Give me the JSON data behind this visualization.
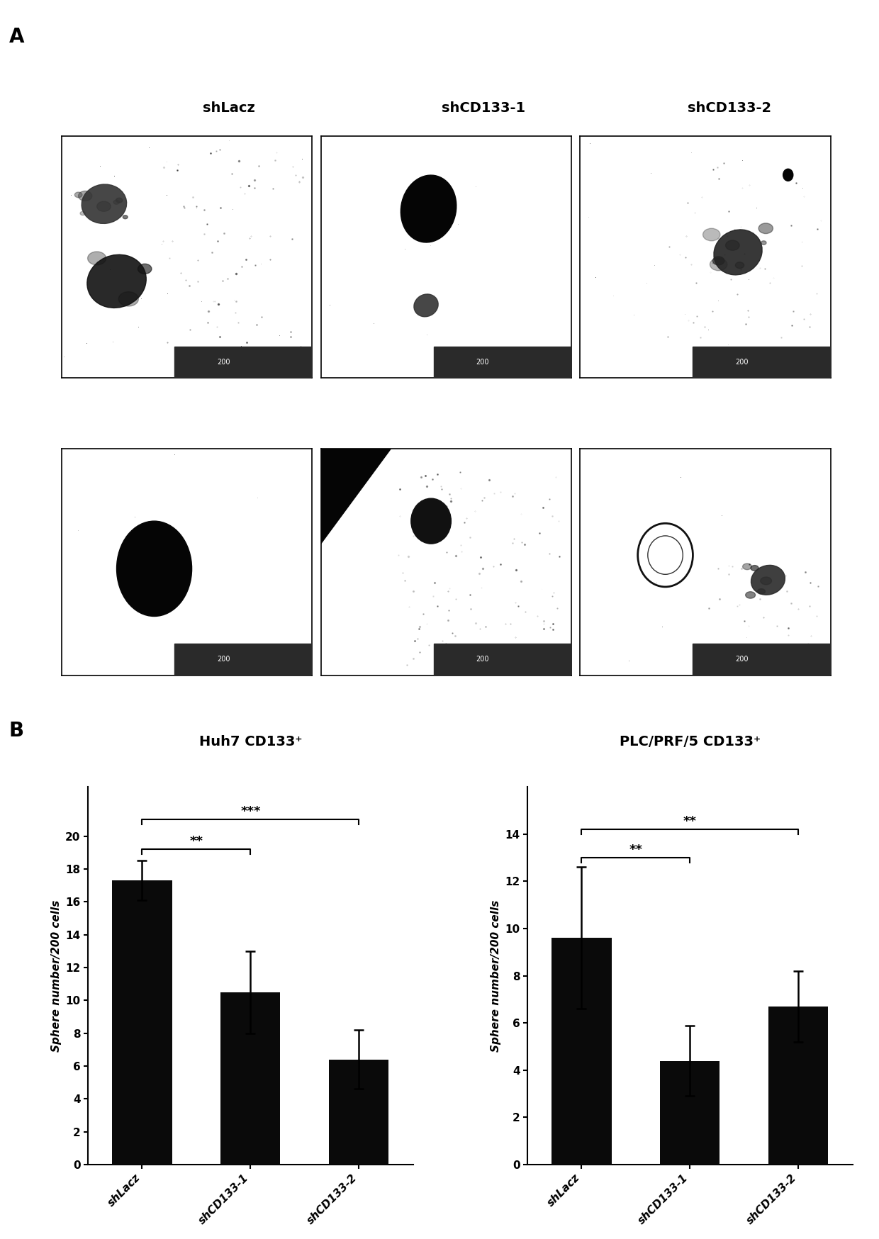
{
  "panel_A_label": "A",
  "panel_B_label": "B",
  "col_labels": [
    "shLacz",
    "shCD133-1",
    "shCD133-2"
  ],
  "chart1_title": "Huh7 CD133⁺",
  "chart2_title": "PLC/PRF/5 CD133⁺",
  "ylabel": "Sphere number/200 cells",
  "categories": [
    "shLacz",
    "shCD133-1",
    "shCD133-2"
  ],
  "huh7_values": [
    17.3,
    10.5,
    6.4
  ],
  "huh7_errors": [
    1.2,
    2.5,
    1.8
  ],
  "huh7_ylim": [
    0,
    20
  ],
  "huh7_yticks": [
    0,
    2,
    4,
    6,
    8,
    10,
    12,
    14,
    16,
    18,
    20
  ],
  "plc_values": [
    9.6,
    4.4,
    6.7
  ],
  "plc_errors": [
    3.0,
    1.5,
    1.5
  ],
  "plc_ylim": [
    0,
    14
  ],
  "plc_yticks": [
    0,
    2,
    4,
    6,
    8,
    10,
    12,
    14
  ],
  "bar_color": "#0a0a0a",
  "bar_width": 0.55,
  "background_color": "#ffffff",
  "text_color": "#000000",
  "title_fontsize": 14,
  "label_fontsize": 11,
  "tick_fontsize": 11,
  "sig_fontsize": 13,
  "xticklabel_fontsize": 11
}
